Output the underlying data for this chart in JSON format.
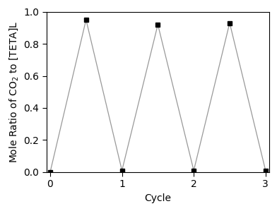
{
  "x": [
    0,
    0.5,
    1.0,
    1.5,
    2.0,
    2.5,
    3.0
  ],
  "y": [
    0.0,
    0.95,
    0.01,
    0.92,
    0.01,
    0.93,
    0.01
  ],
  "peak_indices": [
    1,
    3,
    5
  ],
  "valley_indices": [
    0,
    2,
    4,
    6
  ],
  "line_color": "#999999",
  "marker_color": "#000000",
  "marker_size": 5,
  "xlabel": "Cycle",
  "ylabel": "Mole Ratio of CO$_2$ to [TETA]L",
  "xlim": [
    -0.05,
    3.05
  ],
  "ylim": [
    0.0,
    1.0
  ],
  "xticks": [
    0,
    1,
    2,
    3
  ],
  "yticks": [
    0.0,
    0.2,
    0.4,
    0.6,
    0.8,
    1.0
  ],
  "label_fontsize": 10,
  "tick_fontsize": 10,
  "figure_facecolor": "#ffffff",
  "axes_facecolor": "#ffffff",
  "spine_color": "#000000",
  "linewidth": 0.9,
  "spine_linewidth": 0.8
}
